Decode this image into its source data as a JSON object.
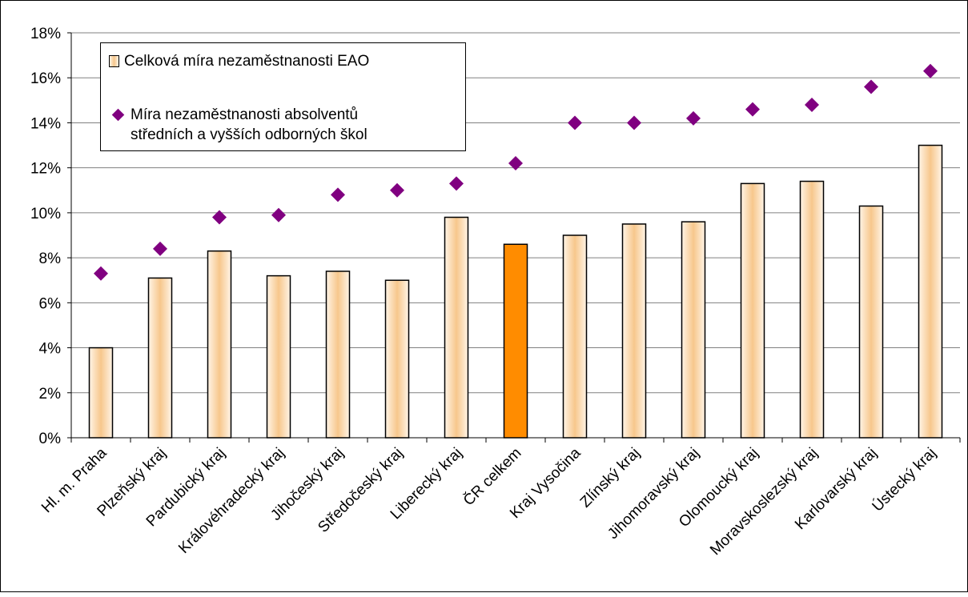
{
  "chart_data": {
    "type": "bar",
    "title": "",
    "xlabel": "",
    "ylabel": "",
    "ylim": [
      0,
      18
    ],
    "y_ticks": [
      "0%",
      "2%",
      "4%",
      "6%",
      "8%",
      "10%",
      "12%",
      "14%",
      "16%",
      "18%"
    ],
    "y_tick_values": [
      0,
      2,
      4,
      6,
      8,
      10,
      12,
      14,
      16,
      18
    ],
    "grid": "horizontal",
    "legend_position": "top-left",
    "categories": [
      "Hl. m. Praha",
      "Plzeňský kraj",
      "Pardubický kraj",
      "Královéhradecký kraj",
      "Jihočeský kraj",
      "Středočeský kraj",
      "Liberecký kraj",
      "ČR celkem",
      "Kraj Vysočina",
      "Zlínský kraj",
      "Jihomoravský kraj",
      "Olomoucký kraj",
      "Moravskoslezský kraj",
      "Karlovarský kraj",
      "Ústecký kraj"
    ],
    "series": [
      {
        "name": "Celková míra nezaměstnanosti EAO",
        "type": "bar",
        "color": "#f7c78c",
        "highlight_color": "#ff8c00",
        "highlight_category": "ČR celkem",
        "values": [
          4.0,
          7.1,
          8.3,
          7.2,
          7.4,
          7.0,
          9.8,
          8.6,
          9.0,
          9.5,
          9.6,
          11.3,
          11.4,
          10.3,
          13.0
        ]
      },
      {
        "name_lines": [
          "Míra nezaměstnanosti absolventů",
          "středních a vyšších odborných škol"
        ],
        "type": "scatter",
        "marker": "diamond",
        "color": "#800080",
        "values": [
          7.3,
          8.4,
          9.8,
          9.9,
          10.8,
          11.0,
          11.3,
          12.2,
          14.0,
          14.0,
          14.2,
          14.6,
          14.8,
          15.6,
          16.3
        ]
      }
    ]
  }
}
